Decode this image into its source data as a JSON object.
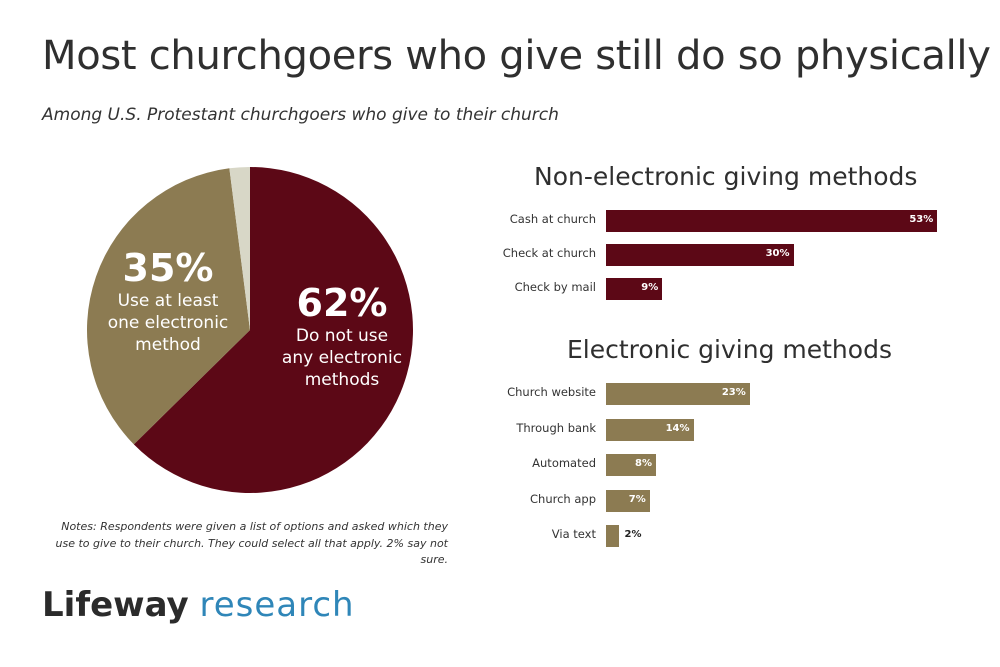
{
  "title": "Most churchgoers who give still do so physically",
  "subtitle": "Among U.S. Protestant churchgoers who give to their church",
  "notes": "Notes: Respondents were given a list of options and asked which they use to give to their church. They could select all that apply. 2% say not sure.",
  "logo": {
    "brand": "Lifeway",
    "sub": "research"
  },
  "colors": {
    "maroon": "#5c0816",
    "olive": "#8c7b52",
    "not_sure": "#d8d7c7"
  },
  "chart_data": [
    {
      "type": "pie",
      "slices": [
        {
          "value": 62,
          "label": "62%",
          "description": "Do not use any electronic methods",
          "color": "#5c0816"
        },
        {
          "value": 35,
          "label": "35%",
          "description": "Use at least one electronic method",
          "color": "#8c7b52"
        },
        {
          "value": 2,
          "label": "",
          "description": "",
          "color": "#d8d7c7"
        }
      ],
      "pie_labels": {
        "electronic": {
          "pct": "35%",
          "desc": "Use at least\none electronic\nmethod"
        },
        "none": {
          "pct": "62%",
          "desc": "Do not use\nany electronic\nmethods"
        }
      }
    },
    {
      "type": "bar",
      "title": "Non-electronic giving methods",
      "categories": [
        "Cash at church",
        "Check at church",
        "Check by mail"
      ],
      "values": [
        53,
        30,
        9
      ],
      "value_labels": [
        "53%",
        "30%",
        "9%"
      ],
      "color": "#5c0816"
    },
    {
      "type": "bar",
      "title": "Electronic giving methods",
      "categories": [
        "Church website",
        "Through bank",
        "Automated",
        "Church app",
        "Via text"
      ],
      "values": [
        23,
        14,
        8,
        7,
        2
      ],
      "value_labels": [
        "23%",
        "14%",
        "8%",
        "7%",
        "2%"
      ],
      "color": "#8c7b52"
    }
  ]
}
